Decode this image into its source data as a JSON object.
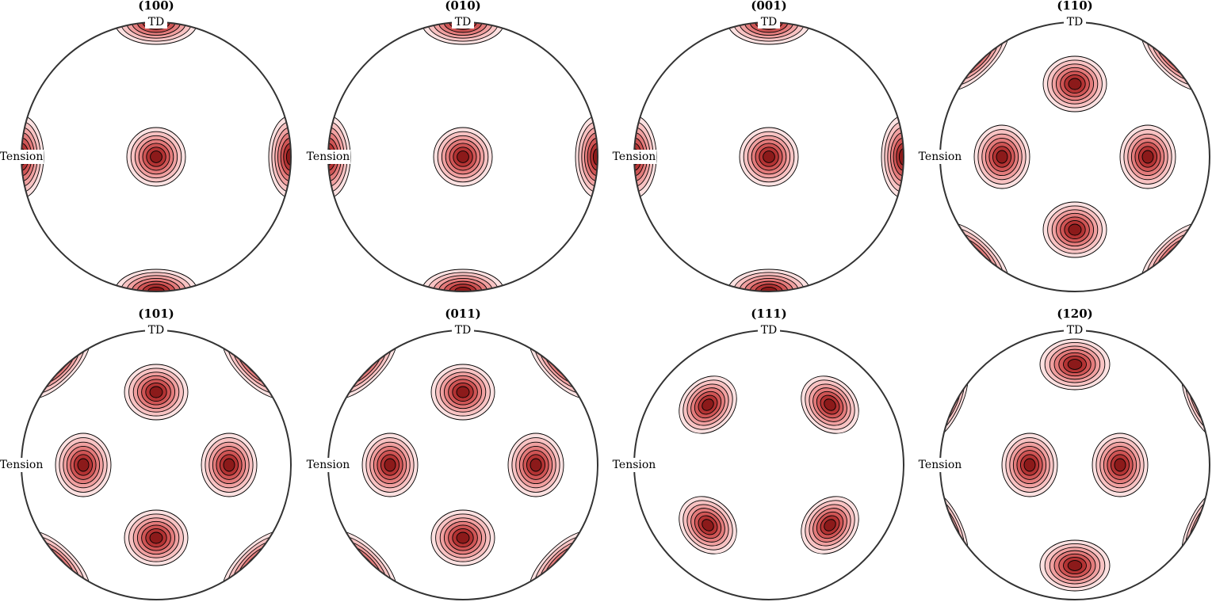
{
  "figures": [
    {
      "title": "(100)",
      "top_label": "TD",
      "left_label": "Tension"
    },
    {
      "title": "(010)",
      "top_label": "TD",
      "left_label": "Tension"
    },
    {
      "title": "(001)",
      "top_label": "TD",
      "left_label": "Tension"
    },
    {
      "title": "(110)",
      "top_label": "TD",
      "left_label": "Tension"
    },
    {
      "title": "(101)",
      "top_label": "TD",
      "left_label": "Tension"
    },
    {
      "title": "(011)",
      "top_label": "TD",
      "left_label": "Tension"
    },
    {
      "title": "(111)",
      "top_label": "TD",
      "left_label": "Tension"
    },
    {
      "title": "(120)",
      "top_label": "TD",
      "left_label": "Tension"
    }
  ]
}
